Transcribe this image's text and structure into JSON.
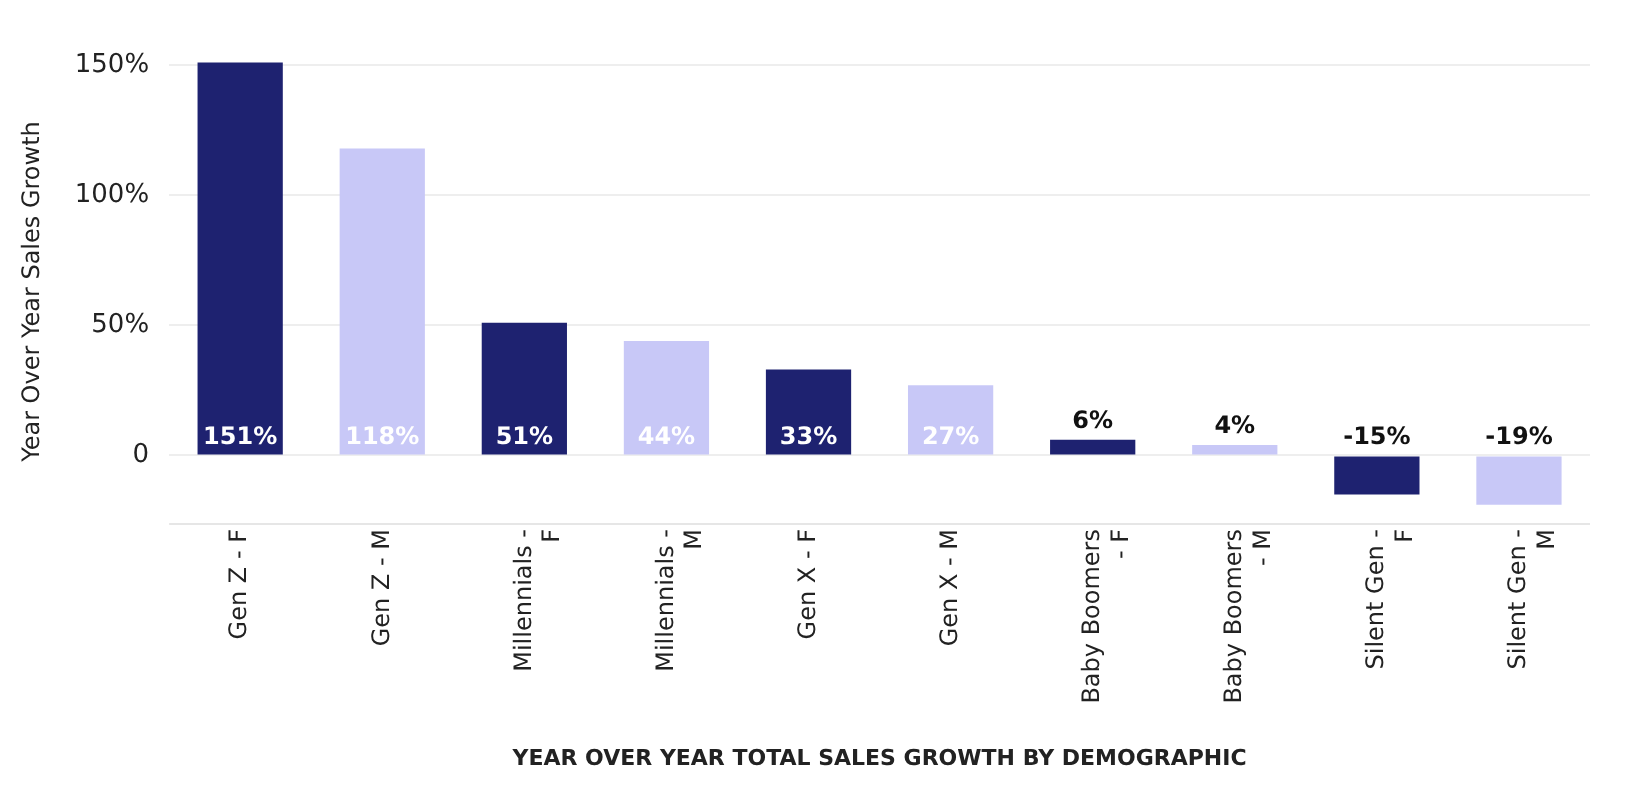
{
  "chart_data": {
    "type": "bar",
    "xlabel": "YEAR OVER YEAR TOTAL SALES GROWTH BY DEMOGRAPHIC",
    "ylabel": "Year Over Year Sales Growth",
    "categories": [
      "Gen Z - F",
      "Gen Z - M",
      "Millennials - F",
      "Millennials - M",
      "Gen X - F",
      "Gen X - M",
      "Baby Boomers - F",
      "Baby Boomers - M",
      "Silent Gen - F",
      "Silent Gen - M"
    ],
    "values": [
      151,
      118,
      51,
      44,
      33,
      27,
      6,
      4,
      -15,
      -19
    ],
    "colors": [
      "#1e2270",
      "#c8c8f7",
      "#1e2270",
      "#c8c8f7",
      "#1e2270",
      "#c8c8f7",
      "#1e2270",
      "#c8c8f7",
      "#1e2270",
      "#c8c8f7"
    ],
    "value_labels": [
      "151%",
      "118%",
      "51%",
      "44%",
      "33%",
      "27%",
      "6%",
      "4%",
      "-15%",
      "-19%"
    ],
    "ylim": [
      -26,
      152
    ],
    "yticks": [
      {
        "value": 0,
        "label": "0"
      },
      {
        "value": 50,
        "label": "50%"
      },
      {
        "value": 100,
        "label": "100%"
      },
      {
        "value": 150,
        "label": "150%"
      }
    ],
    "grid": "y",
    "legend": false
  }
}
